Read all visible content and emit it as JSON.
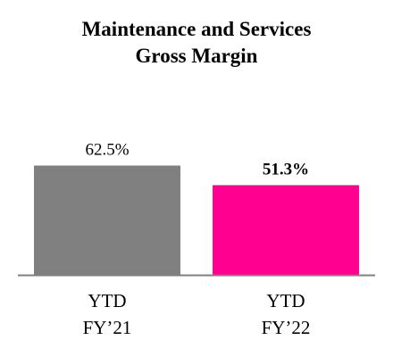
{
  "chart_data": {
    "type": "bar",
    "title": [
      "Maintenance and Services",
      "Gross Margin"
    ],
    "categories": [
      [
        "YTD",
        "FY’21"
      ],
      [
        "YTD",
        "FY’22"
      ]
    ],
    "values": [
      62.5,
      51.3
    ],
    "data_labels": [
      "62.5%",
      "51.3%"
    ],
    "data_label_bold": [
      false,
      true
    ],
    "colors": [
      "#808080",
      "#ff0090"
    ],
    "axis_color": "#808080",
    "ylim": [
      0,
      100
    ],
    "grid": false,
    "legend": "none",
    "xlabel": "",
    "ylabel": ""
  }
}
